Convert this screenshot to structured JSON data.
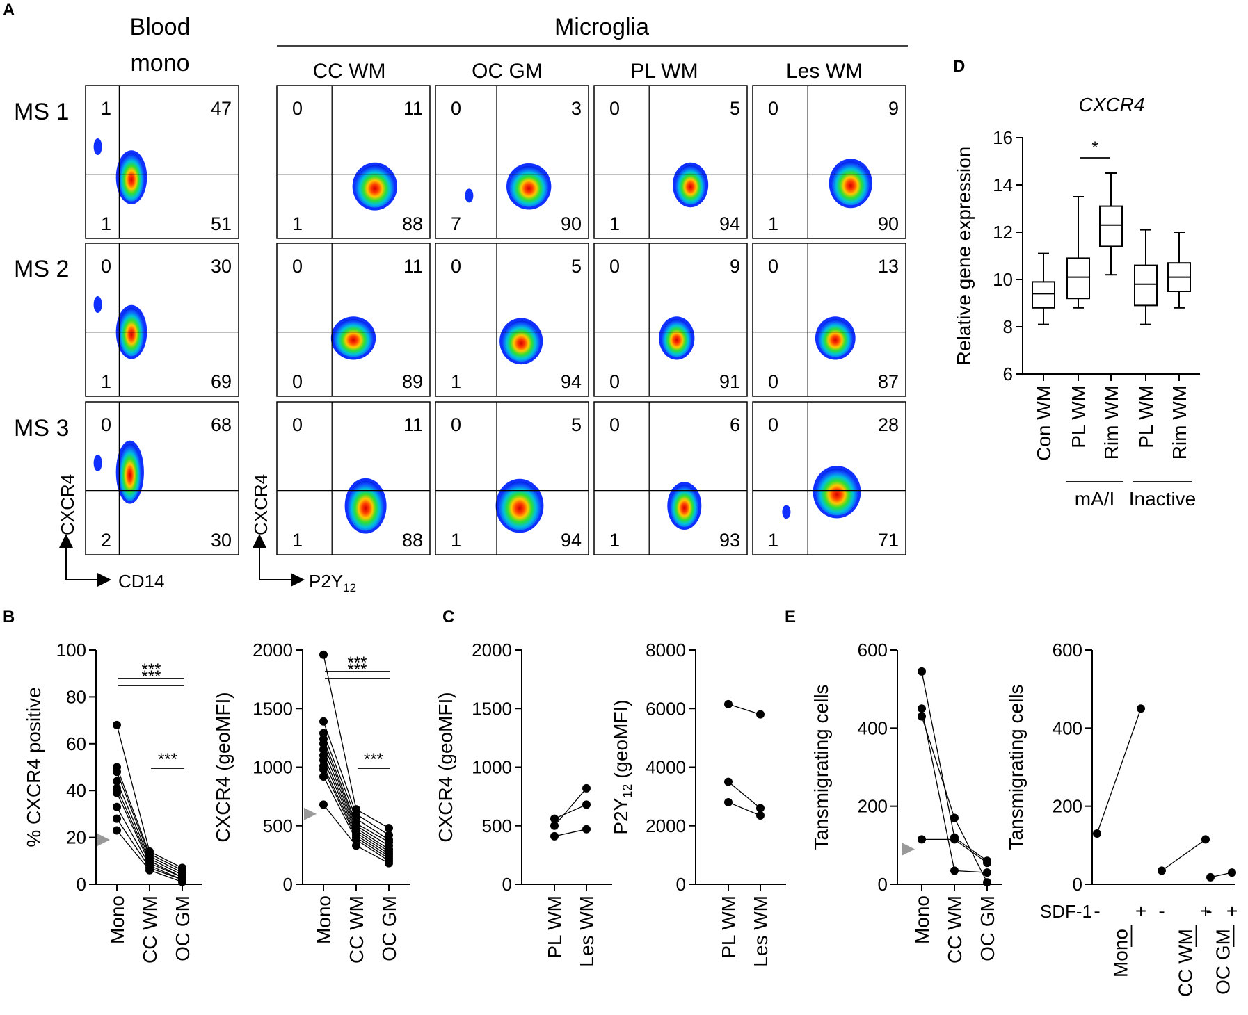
{
  "panel_letters": [
    "A",
    "B",
    "C",
    "D",
    "E"
  ],
  "facs": {
    "col_titles": [
      "Blood\nmono",
      "CC WM",
      "OC GM",
      "PL WM",
      "Les WM"
    ],
    "group_title": "Microglia",
    "row_labels": [
      "MS 1",
      "MS 2",
      "MS 3"
    ],
    "axes": {
      "mono_y": "CXCR4",
      "mono_x": "CD14",
      "mg_y": "CXCR4",
      "mg_x": "P2Y",
      "mg_x_sub": "12"
    },
    "quadrants": [
      [
        [
          "1",
          "47",
          "1",
          "51"
        ],
        [
          "0",
          "11",
          "1",
          "88"
        ],
        [
          "0",
          "3",
          "7",
          "90"
        ],
        [
          "0",
          "5",
          "1",
          "94"
        ],
        [
          "0",
          "9",
          "1",
          "90"
        ]
      ],
      [
        [
          "0",
          "30",
          "1",
          "69"
        ],
        [
          "0",
          "11",
          "0",
          "89"
        ],
        [
          "0",
          "5",
          "1",
          "94"
        ],
        [
          "0",
          "9",
          "0",
          "91"
        ],
        [
          "0",
          "13",
          "0",
          "87"
        ]
      ],
      [
        [
          "0",
          "68",
          "2",
          "30"
        ],
        [
          "0",
          "11",
          "1",
          "88"
        ],
        [
          "0",
          "5",
          "1",
          "94"
        ],
        [
          "0",
          "6",
          "1",
          "93"
        ],
        [
          "0",
          "28",
          "1",
          "71"
        ]
      ]
    ]
  },
  "chart_data": [
    {
      "id": "B1",
      "type": "scatter",
      "ylabel": "% CXCR4 positive",
      "ylim": [
        0,
        100
      ],
      "yticks": [
        "0",
        "20",
        "40",
        "60",
        "80",
        "100"
      ],
      "categories": [
        "Mono",
        "CC WM",
        "OC GM"
      ],
      "paired_values": [
        [
          68,
          14,
          7
        ],
        [
          50,
          13,
          6
        ],
        [
          48,
          12,
          5
        ],
        [
          44,
          11,
          4
        ],
        [
          41,
          10,
          3
        ],
        [
          39,
          9,
          3
        ],
        [
          33,
          8,
          2
        ],
        [
          28,
          7,
          2
        ],
        [
          23,
          6,
          1
        ]
      ],
      "sig": [
        "***",
        "***",
        "***"
      ],
      "arrow_value": 19
    },
    {
      "id": "B2",
      "type": "scatter",
      "ylabel": "CXCR4 (geoMFI)",
      "ylim": [
        0,
        2000
      ],
      "yticks": [
        "0",
        "500",
        "1000",
        "1500",
        "2000"
      ],
      "categories": [
        "Mono",
        "CC WM",
        "OC GM"
      ],
      "paired_values": [
        [
          1960,
          640,
          480
        ],
        [
          1390,
          600,
          420
        ],
        [
          1290,
          560,
          380
        ],
        [
          1240,
          520,
          360
        ],
        [
          1200,
          500,
          330
        ],
        [
          1150,
          480,
          300
        ],
        [
          1100,
          460,
          280
        ],
        [
          1060,
          440,
          260
        ],
        [
          1010,
          420,
          240
        ],
        [
          980,
          400,
          220
        ],
        [
          920,
          380,
          200
        ],
        [
          680,
          330,
          180
        ]
      ],
      "sig": [
        "***",
        "***",
        "***"
      ],
      "arrow_value": 600
    },
    {
      "id": "C1",
      "type": "scatter",
      "ylabel": "CXCR4 (geoMFI)",
      "ylim": [
        0,
        2000
      ],
      "yticks": [
        "0",
        "500",
        "1000",
        "1500",
        "2000"
      ],
      "categories": [
        "PL WM",
        "Les WM"
      ],
      "paired_values": [
        [
          560,
          680
        ],
        [
          500,
          820
        ],
        [
          410,
          470
        ]
      ]
    },
    {
      "id": "C2",
      "type": "scatter",
      "ylabel": "P2Y",
      "ylabel_sub": "12",
      "ylabel_tail": " (geoMFI)",
      "ylim": [
        0,
        8000
      ],
      "yticks": [
        "0",
        "2000",
        "4000",
        "6000",
        "8000"
      ],
      "categories": [
        "PL WM",
        "Les WM"
      ],
      "paired_values": [
        [
          6150,
          5800
        ],
        [
          3500,
          2600
        ],
        [
          2800,
          2350
        ]
      ]
    },
    {
      "id": "D",
      "type": "box",
      "title": "CXCR4",
      "ylabel": "Relative gene expression",
      "ylim": [
        6,
        16
      ],
      "yticks": [
        "6",
        "8",
        "10",
        "12",
        "14",
        "16"
      ],
      "categories": [
        "Con WM",
        "PL WM",
        "Rim WM",
        "PL WM",
        "Rim WM"
      ],
      "boxes": [
        [
          8.1,
          8.8,
          9.4,
          9.9,
          11.1
        ],
        [
          8.8,
          9.2,
          10.1,
          10.9,
          13.5
        ],
        [
          10.2,
          11.4,
          12.3,
          13.1,
          14.5
        ],
        [
          8.1,
          8.9,
          9.8,
          10.6,
          12.1
        ],
        [
          8.8,
          9.5,
          10.1,
          10.7,
          12.0
        ]
      ],
      "groups": [
        {
          "label": "mA/I",
          "from": 1,
          "to": 2
        },
        {
          "label": "Inactive",
          "from": 3,
          "to": 4
        }
      ],
      "sig": "*"
    },
    {
      "id": "E1",
      "type": "scatter",
      "ylabel": "Tansmigrating cells",
      "ylim": [
        0,
        600
      ],
      "yticks": [
        "0",
        "200",
        "400",
        "600"
      ],
      "categories": [
        "Mono",
        "CC WM",
        "OC GM"
      ],
      "paired_values": [
        [
          545,
          120,
          60
        ],
        [
          450,
          35,
          30
        ],
        [
          430,
          170,
          5
        ],
        [
          115,
          115,
          55
        ]
      ],
      "arrow_value": 90
    },
    {
      "id": "E2",
      "type": "scatter",
      "ylabel": "Tansmigrating cells",
      "ylim": [
        0,
        600
      ],
      "yticks": [
        "0",
        "200",
        "400",
        "600"
      ],
      "treatment_label": "SDF-1",
      "treatments": [
        "-",
        "+",
        "-",
        "+",
        "-",
        "+"
      ],
      "categories": [
        "Mono",
        "CC WM",
        "OC GM"
      ],
      "values": [
        [
          130,
          450
        ],
        [
          35,
          115
        ],
        [
          18,
          30
        ]
      ]
    }
  ]
}
